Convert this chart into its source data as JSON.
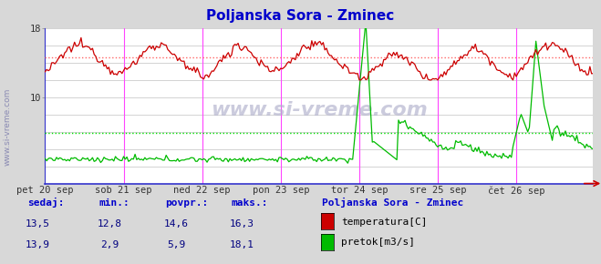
{
  "title": "Poljanska Sora - Zminec",
  "title_color": "#0000cc",
  "bg_color": "#d8d8d8",
  "plot_bg_color": "#ffffff",
  "grid_color": "#cccccc",
  "watermark": "www.si-vreme.com",
  "watermark_color": "#b0b0cc",
  "ymin": 0,
  "ymax": 18,
  "n_points": 336,
  "temp_avg": 14.6,
  "flow_avg": 5.9,
  "temp_color": "#cc0000",
  "flow_color": "#00bb00",
  "avg_temp_line_color": "#ff6666",
  "avg_flow_line_color": "#00dd00",
  "day_line_color": "#ff44ff",
  "day_labels": [
    "pet 20 sep",
    "sob 21 sep",
    "ned 22 sep",
    "pon 23 sep",
    "tor 24 sep",
    "sre 25 sep",
    "čet 26 sep"
  ],
  "day_positions": [
    0,
    48,
    96,
    144,
    192,
    240,
    288
  ],
  "bottom_labels": [
    "sedaj:",
    "min.:",
    "povpr.:",
    "maks.:"
  ],
  "bottom_values_temp": [
    "13,5",
    "12,8",
    "14,6",
    "16,3"
  ],
  "bottom_values_flow": [
    "13,9",
    "2,9",
    "5,9",
    "18,1"
  ],
  "legend_title": "Poljanska Sora - Zminec",
  "legend_items": [
    "temperatura[C]",
    "pretok[m3/s]"
  ],
  "legend_colors": [
    "#cc0000",
    "#00bb00"
  ],
  "footer_label_color": "#0000cc",
  "footer_value_color": "#000080",
  "legend_title_color": "#0000cc"
}
